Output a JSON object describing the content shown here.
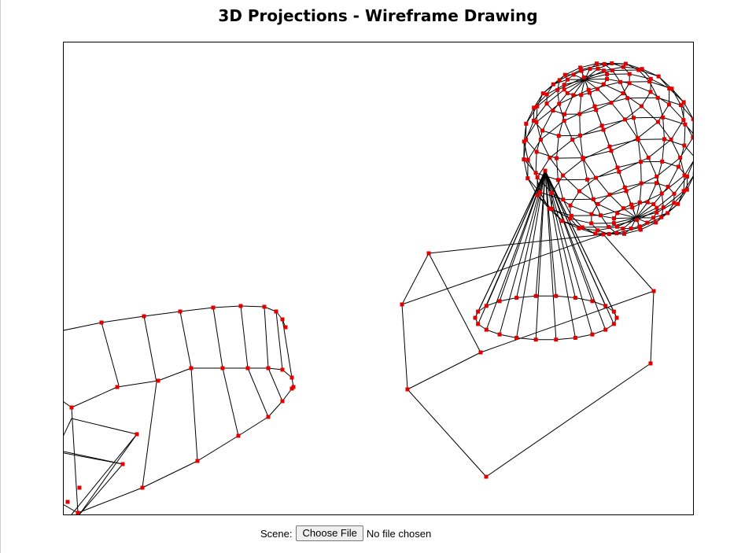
{
  "page": {
    "title": "3D Projections - Wireframe Drawing"
  },
  "controls": {
    "scene_label": "Scene:",
    "file_button_label": "Choose File",
    "file_status": "No file chosen"
  },
  "colors": {
    "edge": "#000000",
    "vertex": "#e00000",
    "background": "#ffffff"
  },
  "icons": {
    "vertex_marker": "red-square-icon"
  }
}
